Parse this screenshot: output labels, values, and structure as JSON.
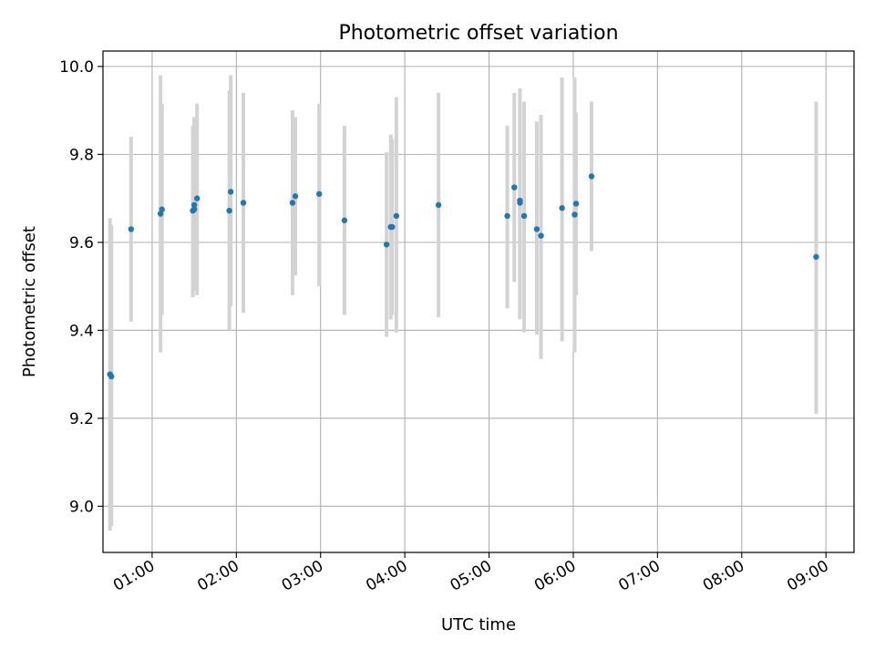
{
  "chart_data": {
    "type": "scatter",
    "title": "Photometric offset variation",
    "xlabel": "UTC time",
    "ylabel": "Photometric offset",
    "xlim": [
      "00:25",
      "09:20"
    ],
    "ylim": [
      8.895,
      10.035
    ],
    "grid": true,
    "x_ticks": [
      "01:00",
      "02:00",
      "03:00",
      "04:00",
      "05:00",
      "06:00",
      "07:00",
      "08:00",
      "09:00"
    ],
    "y_ticks": [
      9.0,
      9.2,
      9.4,
      9.6,
      9.8,
      10.0
    ],
    "y_tick_labels": [
      "9.0",
      "9.2",
      "9.4",
      "9.6",
      "9.8",
      "10.0"
    ],
    "colors": {
      "marker": "#1f77b4",
      "errorbar": "#d3d3d3",
      "grid": "#b0b0b0"
    },
    "points": [
      {
        "x": "00:30",
        "y": 9.3,
        "ylo": 8.945,
        "yhi": 9.655
      },
      {
        "x": "00:31",
        "y": 9.295,
        "ylo": 8.955,
        "yhi": 9.64
      },
      {
        "x": "00:45",
        "y": 9.63,
        "ylo": 9.42,
        "yhi": 9.84
      },
      {
        "x": "01:06",
        "y": 9.665,
        "ylo": 9.35,
        "yhi": 9.98
      },
      {
        "x": "01:07",
        "y": 9.675,
        "ylo": 9.435,
        "yhi": 9.915
      },
      {
        "x": "01:29",
        "y": 9.672,
        "ylo": 9.475,
        "yhi": 9.865
      },
      {
        "x": "01:30",
        "y": 9.685,
        "ylo": 9.49,
        "yhi": 9.885
      },
      {
        "x": "01:30",
        "y": 9.675,
        "ylo": 9.49,
        "yhi": 9.88
      },
      {
        "x": "01:32",
        "y": 9.7,
        "ylo": 9.48,
        "yhi": 9.915
      },
      {
        "x": "01:55",
        "y": 9.672,
        "ylo": 9.4,
        "yhi": 9.945
      },
      {
        "x": "01:56",
        "y": 9.715,
        "ylo": 9.455,
        "yhi": 9.98
      },
      {
        "x": "02:05",
        "y": 9.69,
        "ylo": 9.44,
        "yhi": 9.94
      },
      {
        "x": "02:40",
        "y": 9.69,
        "ylo": 9.48,
        "yhi": 9.9
      },
      {
        "x": "02:42",
        "y": 9.705,
        "ylo": 9.525,
        "yhi": 9.885
      },
      {
        "x": "02:59",
        "y": 9.71,
        "ylo": 9.5,
        "yhi": 9.915
      },
      {
        "x": "03:17",
        "y": 9.65,
        "ylo": 9.435,
        "yhi": 9.865
      },
      {
        "x": "03:47",
        "y": 9.595,
        "ylo": 9.385,
        "yhi": 9.805
      },
      {
        "x": "03:50",
        "y": 9.635,
        "ylo": 9.425,
        "yhi": 9.845
      },
      {
        "x": "03:51",
        "y": 9.635,
        "ylo": 9.435,
        "yhi": 9.835
      },
      {
        "x": "03:54",
        "y": 9.66,
        "ylo": 9.395,
        "yhi": 9.93
      },
      {
        "x": "04:24",
        "y": 9.685,
        "ylo": 9.43,
        "yhi": 9.94
      },
      {
        "x": "05:13",
        "y": 9.66,
        "ylo": 9.45,
        "yhi": 9.865
      },
      {
        "x": "05:18",
        "y": 9.725,
        "ylo": 9.51,
        "yhi": 9.94
      },
      {
        "x": "05:22",
        "y": 9.695,
        "ylo": 9.44,
        "yhi": 9.95
      },
      {
        "x": "05:22",
        "y": 9.69,
        "ylo": 9.425,
        "yhi": 9.945
      },
      {
        "x": "05:25",
        "y": 9.66,
        "ylo": 9.395,
        "yhi": 9.92
      },
      {
        "x": "05:34",
        "y": 9.63,
        "ylo": 9.39,
        "yhi": 9.875
      },
      {
        "x": "05:37",
        "y": 9.615,
        "ylo": 9.335,
        "yhi": 9.89
      },
      {
        "x": "05:52",
        "y": 9.678,
        "ylo": 9.375,
        "yhi": 9.975
      },
      {
        "x": "06:01",
        "y": 9.663,
        "ylo": 9.35,
        "yhi": 9.975
      },
      {
        "x": "06:02",
        "y": 9.688,
        "ylo": 9.48,
        "yhi": 9.895
      },
      {
        "x": "06:13",
        "y": 9.75,
        "ylo": 9.58,
        "yhi": 9.92
      },
      {
        "x": "08:53",
        "y": 9.567,
        "ylo": 9.21,
        "yhi": 9.92
      }
    ]
  }
}
